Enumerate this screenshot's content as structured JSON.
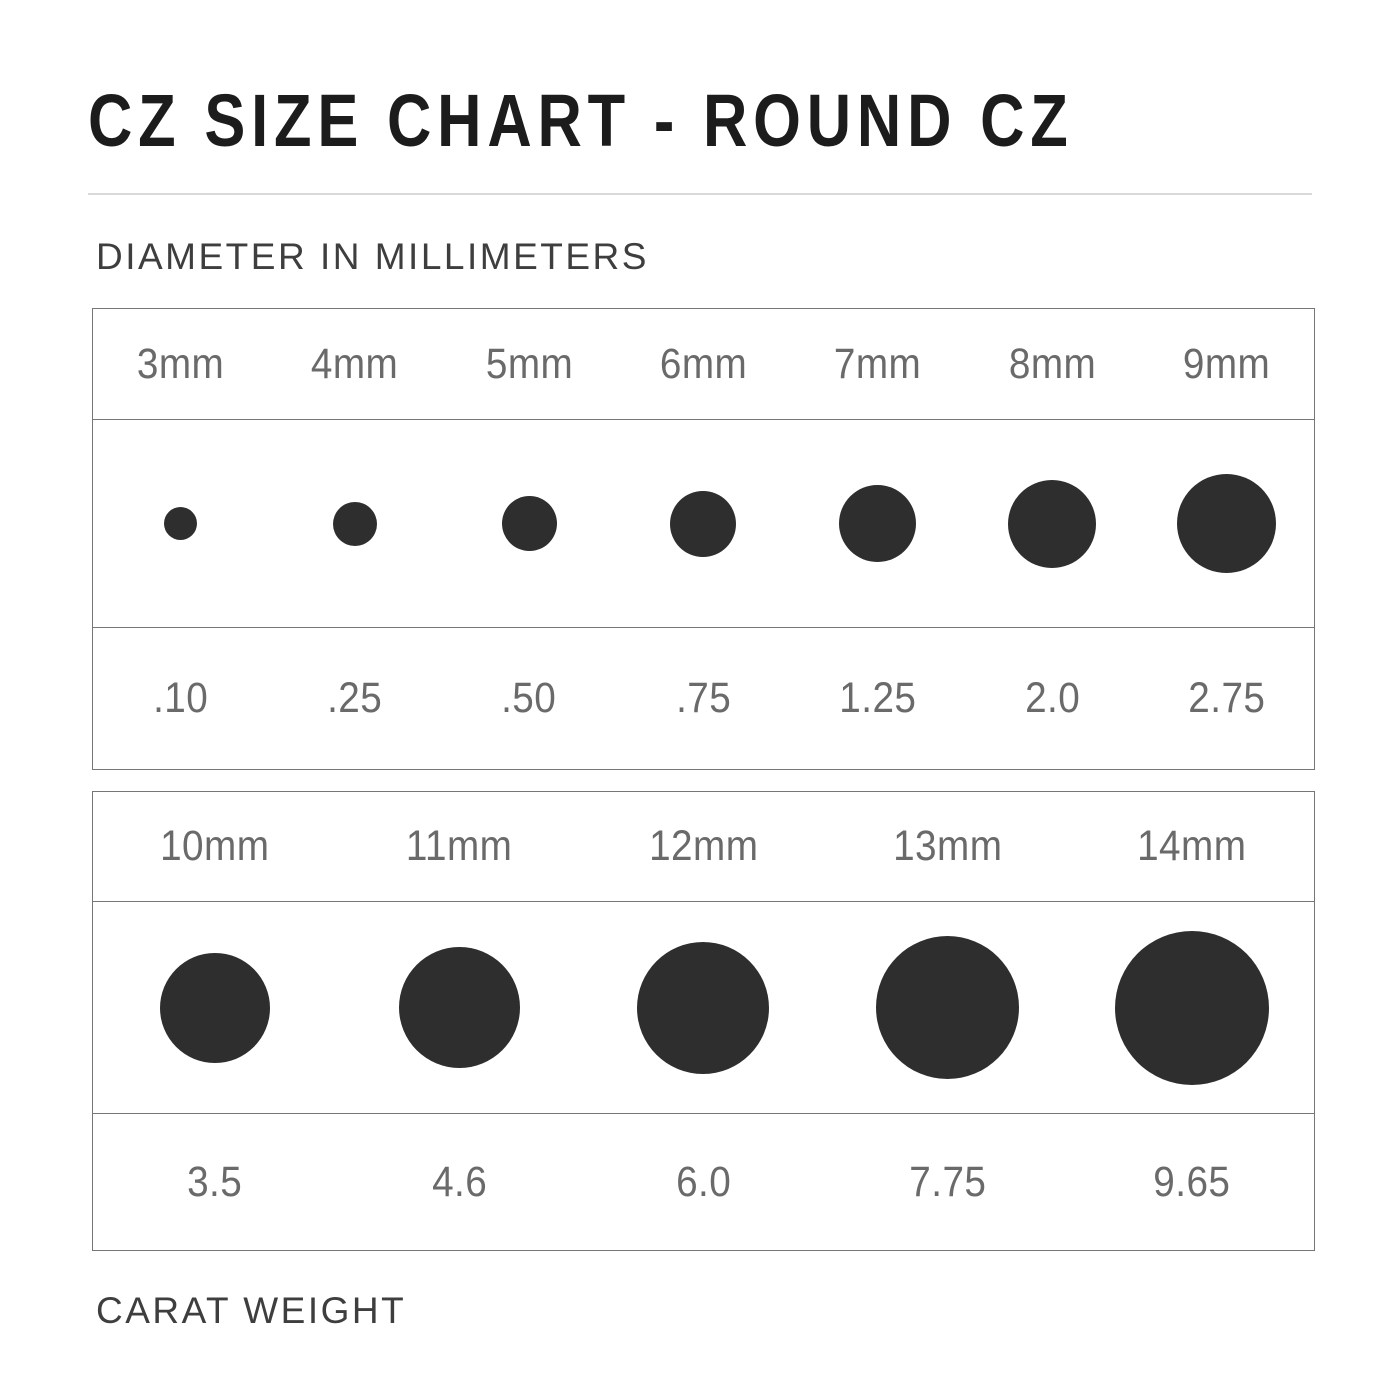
{
  "title": "CZ SIZE CHART - ROUND CZ",
  "labels": {
    "diameter": "DIAMETER IN MILLIMETERS",
    "carat": "CARAT WEIGHT"
  },
  "colors": {
    "title_text": "#1c1c1c",
    "section_label_text": "#3e3e3e",
    "table_text": "#6a6a6a",
    "dot_fill": "#2e2e2e",
    "table_border": "#767676",
    "title_divider": "#d9d9d9",
    "background": "#ffffff"
  },
  "tables": [
    {
      "name": "round-cz-3mm-to-9mm",
      "columns": [
        {
          "mm_label": "3mm",
          "mm": 3,
          "carat": ".10"
        },
        {
          "mm_label": "4mm",
          "mm": 4,
          "carat": ".25"
        },
        {
          "mm_label": "5mm",
          "mm": 5,
          "carat": ".50"
        },
        {
          "mm_label": "6mm",
          "mm": 6,
          "carat": ".75"
        },
        {
          "mm_label": "7mm",
          "mm": 7,
          "carat": "1.25"
        },
        {
          "mm_label": "8mm",
          "mm": 8,
          "carat": "2.0"
        },
        {
          "mm_label": "9mm",
          "mm": 9,
          "carat": "2.75"
        }
      ]
    },
    {
      "name": "round-cz-10mm-to-14mm",
      "columns": [
        {
          "mm_label": "10mm",
          "mm": 10,
          "carat": "3.5"
        },
        {
          "mm_label": "11mm",
          "mm": 11,
          "carat": "4.6"
        },
        {
          "mm_label": "12mm",
          "mm": 12,
          "carat": "6.0"
        },
        {
          "mm_label": "13mm",
          "mm": 13,
          "carat": "7.75"
        },
        {
          "mm_label": "14mm",
          "mm": 14,
          "carat": "9.65"
        }
      ]
    }
  ],
  "chart_data": {
    "type": "table",
    "title": "CZ SIZE CHART - ROUND CZ",
    "xlabel": "DIAMETER IN MILLIMETERS",
    "ylabel": "CARAT WEIGHT",
    "columns": [
      "Diameter (mm)",
      "Carat weight"
    ],
    "rows": [
      [
        3,
        0.1
      ],
      [
        4,
        0.25
      ],
      [
        5,
        0.5
      ],
      [
        6,
        0.75
      ],
      [
        7,
        1.25
      ],
      [
        8,
        2.0
      ],
      [
        9,
        2.75
      ],
      [
        10,
        3.5
      ],
      [
        11,
        4.6
      ],
      [
        12,
        6.0
      ],
      [
        13,
        7.75
      ],
      [
        14,
        9.65
      ]
    ],
    "layout_hints": "Two bordered tables; dot diameter visually encodes stone size; first table 3-9mm, second table 10-14mm"
  }
}
